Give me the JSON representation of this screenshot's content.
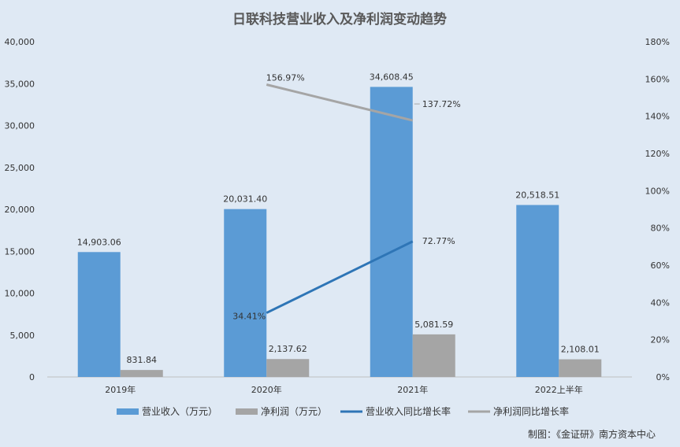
{
  "chart_data": {
    "type": "bar",
    "title": "日联科技营业收入及净利润变动趋势",
    "categories": [
      "2019年",
      "2020年",
      "2021年",
      "2022上半年"
    ],
    "series": [
      {
        "name": "营业收入（万元）",
        "type": "bar",
        "axis": "left",
        "color": "#5b9bd5",
        "values": [
          14903.06,
          20031.4,
          34608.45,
          20518.51
        ],
        "labels": [
          "14,903.06",
          "20,031.40",
          "34,608.45",
          "20,518.51"
        ]
      },
      {
        "name": "净利润（万元）",
        "type": "bar",
        "axis": "left",
        "color": "#a5a5a5",
        "values": [
          831.84,
          2137.62,
          5081.59,
          2108.01
        ],
        "labels": [
          "831.84",
          "2,137.62",
          "5,081.59",
          "2,108.01"
        ]
      },
      {
        "name": "营业收入同比增长率",
        "type": "line",
        "axis": "right",
        "color": "#2e75b6",
        "values": [
          null,
          34.41,
          72.77,
          null
        ],
        "labels": [
          null,
          "34.41%",
          "72.77%",
          null
        ]
      },
      {
        "name": "净利润同比增长率",
        "type": "line",
        "axis": "right",
        "color": "#a5a5a5",
        "values": [
          null,
          156.97,
          137.72,
          null
        ],
        "labels": [
          null,
          "156.97%",
          "137.72%",
          null
        ]
      }
    ],
    "y_left": {
      "min": 0,
      "max": 40000,
      "ticks": [
        "0",
        "5,000",
        "10,000",
        "15,000",
        "20,000",
        "25,000",
        "30,000",
        "35,000",
        "40,000"
      ]
    },
    "y_right": {
      "min": 0,
      "max": 180,
      "ticks": [
        "0%",
        "20%",
        "40%",
        "60%",
        "80%",
        "100%",
        "120%",
        "140%",
        "160%",
        "180%"
      ]
    },
    "grid": false,
    "legend": "bottom"
  },
  "footer": {
    "source": "制图：《金证研》南方资本中心"
  }
}
